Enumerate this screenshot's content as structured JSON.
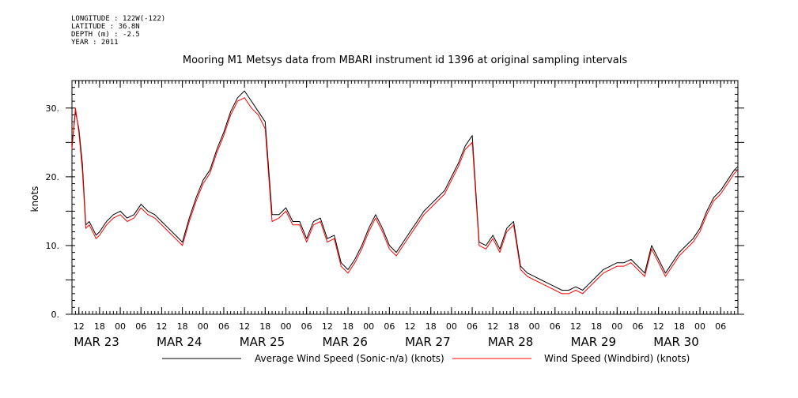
{
  "metadata": {
    "longitude": "LONGITUDE : 122W(-122)",
    "latitude": "LATITUDE : 36.8N",
    "depth": "DEPTH (m) : -2.5",
    "year": "YEAR : 2011"
  },
  "chart_data": {
    "type": "line",
    "title": "Mooring M1 Metsys data from MBARI instrument id 1396 at original sampling intervals",
    "ylabel": "knots",
    "xlabel": "",
    "ylim": [
      0,
      34
    ],
    "yticks": [
      0,
      10,
      20,
      30
    ],
    "ytick_labels": [
      "0.",
      "10.",
      "20.",
      "30."
    ],
    "xlim": [
      "2011-03-22T10:00",
      "2011-03-30T11:00"
    ],
    "hour_tick_labels": [
      {
        "t": "2011-03-22T12:00",
        "label": "12"
      },
      {
        "t": "2011-03-22T18:00",
        "label": "18"
      },
      {
        "t": "2011-03-23T00:00",
        "label": "00"
      },
      {
        "t": "2011-03-23T06:00",
        "label": "06"
      },
      {
        "t": "2011-03-23T12:00",
        "label": "12"
      },
      {
        "t": "2011-03-23T18:00",
        "label": "18"
      },
      {
        "t": "2011-03-24T00:00",
        "label": "00"
      },
      {
        "t": "2011-03-24T06:00",
        "label": "06"
      },
      {
        "t": "2011-03-24T12:00",
        "label": "12"
      },
      {
        "t": "2011-03-24T18:00",
        "label": "18"
      },
      {
        "t": "2011-03-25T00:00",
        "label": "00"
      },
      {
        "t": "2011-03-25T06:00",
        "label": "06"
      },
      {
        "t": "2011-03-25T12:00",
        "label": "12"
      },
      {
        "t": "2011-03-25T18:00",
        "label": "18"
      },
      {
        "t": "2011-03-26T00:00",
        "label": "00"
      },
      {
        "t": "2011-03-26T06:00",
        "label": "06"
      },
      {
        "t": "2011-03-26T12:00",
        "label": "12"
      },
      {
        "t": "2011-03-26T18:00",
        "label": "18"
      },
      {
        "t": "2011-03-27T00:00",
        "label": "00"
      },
      {
        "t": "2011-03-27T06:00",
        "label": "06"
      },
      {
        "t": "2011-03-27T12:00",
        "label": "12"
      },
      {
        "t": "2011-03-27T18:00",
        "label": "18"
      },
      {
        "t": "2011-03-28T00:00",
        "label": "00"
      },
      {
        "t": "2011-03-28T06:00",
        "label": "06"
      },
      {
        "t": "2011-03-28T12:00",
        "label": "12"
      },
      {
        "t": "2011-03-28T18:00",
        "label": "18"
      },
      {
        "t": "2011-03-29T00:00",
        "label": "00"
      },
      {
        "t": "2011-03-29T06:00",
        "label": "06"
      },
      {
        "t": "2011-03-29T12:00",
        "label": "12"
      },
      {
        "t": "2011-03-29T18:00",
        "label": "18"
      },
      {
        "t": "2011-03-30T00:00",
        "label": "00"
      },
      {
        "t": "2011-03-30T06:00",
        "label": "06"
      }
    ],
    "date_labels": [
      {
        "t": "2011-03-23T00:00",
        "label": "MAR 23"
      },
      {
        "t": "2011-03-24T00:00",
        "label": "MAR 24"
      },
      {
        "t": "2011-03-25T00:00",
        "label": "MAR 25"
      },
      {
        "t": "2011-03-26T00:00",
        "label": "MAR 26"
      },
      {
        "t": "2011-03-27T00:00",
        "label": "MAR 27"
      },
      {
        "t": "2011-03-28T00:00",
        "label": "MAR 28"
      },
      {
        "t": "2011-03-29T00:00",
        "label": "MAR 29"
      },
      {
        "t": "2011-03-30T00:00",
        "label": "MAR 30"
      }
    ],
    "series": [
      {
        "name": "Average Wind Speed (Sonic-n/a) (knots)",
        "color": "#000000",
        "x": [
          "2011-03-22T10:00",
          "2011-03-22T11:00",
          "2011-03-22T12:00",
          "2011-03-22T13:00",
          "2011-03-22T14:00",
          "2011-03-22T15:00",
          "2011-03-22T16:00",
          "2011-03-22T17:00",
          "2011-03-22T18:00",
          "2011-03-22T20:00",
          "2011-03-22T22:00",
          "2011-03-23T00:00",
          "2011-03-23T02:00",
          "2011-03-23T04:00",
          "2011-03-23T06:00",
          "2011-03-23T08:00",
          "2011-03-23T10:00",
          "2011-03-23T12:00",
          "2011-03-23T14:00",
          "2011-03-23T16:00",
          "2011-03-23T18:00",
          "2011-03-23T20:00",
          "2011-03-23T22:00",
          "2011-03-24T00:00",
          "2011-03-24T02:00",
          "2011-03-24T04:00",
          "2011-03-24T06:00",
          "2011-03-24T08:00",
          "2011-03-24T10:00",
          "2011-03-24T12:00",
          "2011-03-24T14:00",
          "2011-03-24T16:00",
          "2011-03-24T18:00",
          "2011-03-24T20:00",
          "2011-03-24T22:00",
          "2011-03-25T00:00",
          "2011-03-25T02:00",
          "2011-03-25T04:00",
          "2011-03-25T06:00",
          "2011-03-25T08:00",
          "2011-03-25T10:00",
          "2011-03-25T12:00",
          "2011-03-25T14:00",
          "2011-03-25T16:00",
          "2011-03-25T18:00",
          "2011-03-25T20:00",
          "2011-03-25T22:00",
          "2011-03-26T00:00",
          "2011-03-26T02:00",
          "2011-03-26T04:00",
          "2011-03-26T06:00",
          "2011-03-26T08:00",
          "2011-03-26T10:00",
          "2011-03-26T12:00",
          "2011-03-26T14:00",
          "2011-03-26T16:00",
          "2011-03-26T18:00",
          "2011-03-26T20:00",
          "2011-03-26T22:00",
          "2011-03-27T00:00",
          "2011-03-27T02:00",
          "2011-03-27T04:00",
          "2011-03-27T06:00",
          "2011-03-27T08:00",
          "2011-03-27T10:00",
          "2011-03-27T12:00",
          "2011-03-27T14:00",
          "2011-03-27T16:00",
          "2011-03-27T18:00",
          "2011-03-27T20:00",
          "2011-03-27T22:00",
          "2011-03-28T00:00",
          "2011-03-28T02:00",
          "2011-03-28T04:00",
          "2011-03-28T06:00",
          "2011-03-28T08:00",
          "2011-03-28T10:00",
          "2011-03-28T12:00",
          "2011-03-28T14:00",
          "2011-03-28T16:00",
          "2011-03-28T18:00",
          "2011-03-28T20:00",
          "2011-03-28T22:00",
          "2011-03-29T00:00",
          "2011-03-29T02:00",
          "2011-03-29T04:00",
          "2011-03-29T06:00",
          "2011-03-29T08:00",
          "2011-03-29T10:00",
          "2011-03-29T12:00",
          "2011-03-29T14:00",
          "2011-03-29T16:00",
          "2011-03-29T18:00",
          "2011-03-29T20:00",
          "2011-03-29T22:00",
          "2011-03-30T00:00",
          "2011-03-30T02:00",
          "2011-03-30T04:00",
          "2011-03-30T06:00",
          "2011-03-30T08:00",
          "2011-03-30T10:00",
          "2011-03-30T11:00"
        ],
        "y": [
          24.5,
          29.5,
          27.0,
          22.0,
          13.0,
          13.5,
          12.5,
          11.5,
          12.0,
          13.5,
          14.5,
          15.0,
          14.0,
          14.5,
          16.0,
          15.0,
          14.5,
          13.5,
          12.5,
          11.5,
          10.5,
          14.0,
          17.0,
          19.5,
          21.0,
          24.0,
          26.5,
          29.5,
          31.5,
          32.5,
          31.0,
          29.5,
          28.0,
          14.5,
          14.5,
          15.5,
          13.5,
          13.5,
          11.0,
          13.5,
          14.0,
          11.0,
          11.5,
          7.5,
          6.5,
          8.0,
          10.0,
          12.5,
          14.5,
          12.5,
          10.0,
          9.0,
          10.5,
          12.0,
          13.5,
          15.0,
          16.0,
          17.0,
          18.0,
          20.0,
          22.0,
          24.5,
          26.0,
          10.5,
          10.0,
          11.5,
          9.5,
          12.5,
          13.5,
          7.0,
          6.0,
          5.5,
          5.0,
          4.5,
          4.0,
          3.5,
          3.5,
          4.0,
          3.5,
          4.5,
          5.5,
          6.5,
          7.0,
          7.5,
          7.5,
          8.0,
          7.0,
          6.0,
          10.0,
          8.0,
          6.0,
          7.5,
          9.0,
          10.0,
          11.0,
          12.5,
          15.0,
          17.0,
          18.0,
          19.5,
          21.0,
          21.5
        ]
      },
      {
        "name": "Wind Speed (Windbird) (knots)",
        "color": "#ff0000",
        "x": [
          "2011-03-22T10:00",
          "2011-03-22T11:00",
          "2011-03-22T12:00",
          "2011-03-22T13:00",
          "2011-03-22T14:00",
          "2011-03-22T15:00",
          "2011-03-22T16:00",
          "2011-03-22T17:00",
          "2011-03-22T18:00",
          "2011-03-22T20:00",
          "2011-03-22T22:00",
          "2011-03-23T00:00",
          "2011-03-23T02:00",
          "2011-03-23T04:00",
          "2011-03-23T06:00",
          "2011-03-23T08:00",
          "2011-03-23T10:00",
          "2011-03-23T12:00",
          "2011-03-23T14:00",
          "2011-03-23T16:00",
          "2011-03-23T18:00",
          "2011-03-23T20:00",
          "2011-03-23T22:00",
          "2011-03-24T00:00",
          "2011-03-24T02:00",
          "2011-03-24T04:00",
          "2011-03-24T06:00",
          "2011-03-24T08:00",
          "2011-03-24T10:00",
          "2011-03-24T12:00",
          "2011-03-24T14:00",
          "2011-03-24T16:00",
          "2011-03-24T18:00",
          "2011-03-24T20:00",
          "2011-03-24T22:00",
          "2011-03-25T00:00",
          "2011-03-25T02:00",
          "2011-03-25T04:00",
          "2011-03-25T06:00",
          "2011-03-25T08:00",
          "2011-03-25T10:00",
          "2011-03-25T12:00",
          "2011-03-25T14:00",
          "2011-03-25T16:00",
          "2011-03-25T18:00",
          "2011-03-25T20:00",
          "2011-03-25T22:00",
          "2011-03-26T00:00",
          "2011-03-26T02:00",
          "2011-03-26T04:00",
          "2011-03-26T06:00",
          "2011-03-26T08:00",
          "2011-03-26T10:00",
          "2011-03-26T12:00",
          "2011-03-26T14:00",
          "2011-03-26T16:00",
          "2011-03-26T18:00",
          "2011-03-26T20:00",
          "2011-03-26T22:00",
          "2011-03-27T00:00",
          "2011-03-27T02:00",
          "2011-03-27T04:00",
          "2011-03-27T06:00",
          "2011-03-27T08:00",
          "2011-03-27T10:00",
          "2011-03-27T12:00",
          "2011-03-27T14:00",
          "2011-03-27T16:00",
          "2011-03-27T18:00",
          "2011-03-27T20:00",
          "2011-03-27T22:00",
          "2011-03-28T00:00",
          "2011-03-28T02:00",
          "2011-03-28T04:00",
          "2011-03-28T06:00",
          "2011-03-28T08:00",
          "2011-03-28T10:00",
          "2011-03-28T12:00",
          "2011-03-28T14:00",
          "2011-03-28T16:00",
          "2011-03-28T18:00",
          "2011-03-28T20:00",
          "2011-03-28T22:00",
          "2011-03-29T00:00",
          "2011-03-29T02:00",
          "2011-03-29T04:00",
          "2011-03-29T06:00",
          "2011-03-29T08:00",
          "2011-03-29T10:00",
          "2011-03-29T12:00",
          "2011-03-29T14:00",
          "2011-03-29T16:00",
          "2011-03-29T18:00",
          "2011-03-29T20:00",
          "2011-03-29T22:00",
          "2011-03-30T00:00",
          "2011-03-30T02:00",
          "2011-03-30T04:00",
          "2011-03-30T06:00",
          "2011-03-30T08:00",
          "2011-03-30T10:00",
          "2011-03-30T11:00"
        ],
        "y": [
          24.0,
          30.0,
          26.5,
          21.0,
          12.5,
          13.0,
          12.0,
          11.0,
          11.5,
          13.0,
          14.0,
          14.5,
          13.5,
          14.0,
          15.5,
          14.5,
          14.0,
          13.0,
          12.0,
          11.0,
          10.0,
          13.5,
          16.5,
          19.0,
          20.5,
          23.5,
          26.0,
          29.0,
          31.0,
          31.5,
          30.0,
          29.0,
          27.0,
          13.5,
          14.0,
          15.0,
          13.0,
          13.0,
          10.5,
          13.0,
          13.5,
          10.5,
          11.0,
          7.0,
          6.0,
          7.5,
          9.5,
          12.0,
          14.0,
          12.0,
          9.5,
          8.5,
          10.0,
          11.5,
          13.0,
          14.5,
          15.5,
          16.5,
          17.5,
          19.5,
          21.5,
          24.0,
          25.0,
          10.0,
          9.5,
          11.0,
          9.0,
          12.0,
          13.0,
          6.5,
          5.5,
          5.0,
          4.5,
          4.0,
          3.5,
          3.0,
          3.0,
          3.5,
          3.0,
          4.0,
          5.0,
          6.0,
          6.5,
          7.0,
          7.0,
          7.5,
          6.5,
          5.5,
          9.5,
          7.5,
          5.5,
          7.0,
          8.5,
          9.5,
          10.5,
          12.0,
          14.5,
          16.5,
          17.5,
          19.0,
          20.5,
          21.0
        ]
      }
    ]
  }
}
